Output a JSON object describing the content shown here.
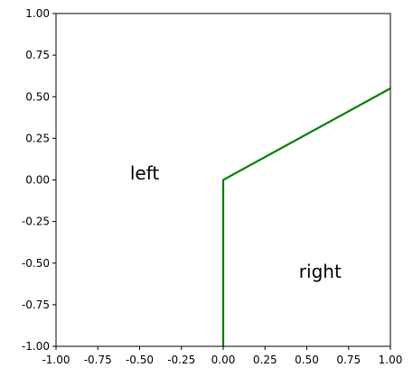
{
  "chart_data": {
    "type": "line",
    "title": "",
    "xlabel": "",
    "ylabel": "",
    "xlim": [
      -1.0,
      1.0
    ],
    "ylim": [
      -1.0,
      1.0
    ],
    "grid": false,
    "legend": "none",
    "x_ticks": [
      "-1.00",
      "-0.75",
      "-0.50",
      "-0.25",
      "0.00",
      "0.25",
      "0.50",
      "0.75",
      "1.00"
    ],
    "y_ticks": [
      "-1.00",
      "-0.75",
      "-0.50",
      "-0.25",
      "0.00",
      "0.25",
      "0.50",
      "0.75",
      "1.00"
    ],
    "series": [
      {
        "color": "#008000",
        "points": [
          {
            "x": 0.0,
            "y": -1.0
          },
          {
            "x": 0.0,
            "y": 0.0
          },
          {
            "x": 1.0,
            "y": 0.55
          }
        ]
      }
    ],
    "annotations": [
      {
        "text": "left",
        "x": -0.47,
        "y": 0.04
      },
      {
        "text": "right",
        "x": 0.58,
        "y": -0.55
      }
    ]
  }
}
